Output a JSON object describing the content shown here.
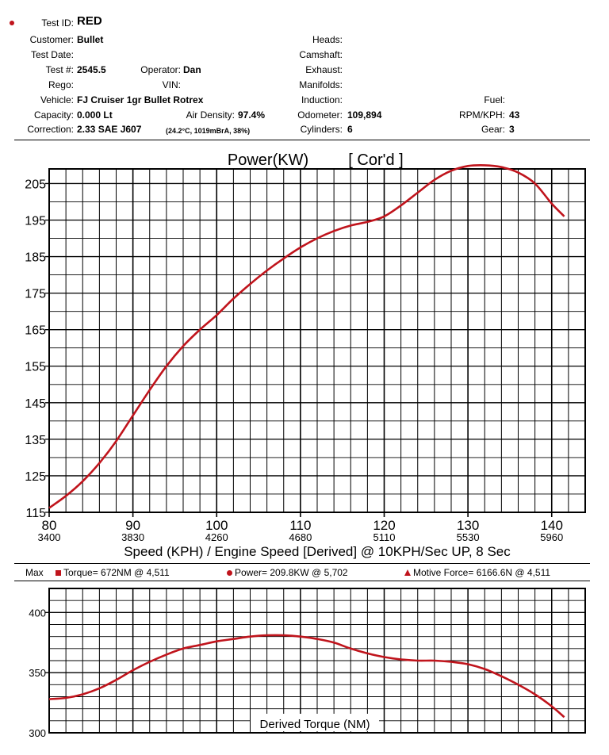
{
  "header": {
    "test_id_label": "Test ID:",
    "test_id": "RED",
    "customer_label": "Customer:",
    "customer": "Bullet",
    "test_date_label": "Test Date:",
    "test_num_label": "Test #:",
    "test_num": "2545.5",
    "operator_label": "Operator:",
    "operator": "Dan",
    "rego_label": "Rego:",
    "vin_label": "VIN:",
    "vehicle_label": "Vehicle:",
    "vehicle": "FJ Cruiser 1gr Bullet Rotrex",
    "capacity_label": "Capacity:",
    "capacity": "0.000 Lt",
    "air_density_label": "Air Density:",
    "air_density": "97.4%",
    "correction_label": "Correction:",
    "correction": "2.33 SAE J607",
    "conditions": "(24.2°C, 1019mBrA, 38%)",
    "heads_label": "Heads:",
    "camshaft_label": "Camshaft:",
    "exhaust_label": "Exhaust:",
    "manifolds_label": "Manifolds:",
    "induction_label": "Induction:",
    "odometer_label": "Odometer:",
    "odometer": "109,894",
    "cylinders_label": "Cylinders:",
    "cylinders": "6",
    "fuel_label": "Fuel:",
    "rpm_kph_label": "RPM/KPH:",
    "rpm_kph": "43",
    "gear_label": "Gear:",
    "gear": "3"
  },
  "max": {
    "label": "Max",
    "torque": "Torque= 672NM @ 4,511",
    "power": "Power= 209.8KW @ 5,702",
    "motive": "Motive Force= 6166.6N @ 4,511"
  },
  "colors": {
    "curve": "#c0141c",
    "grid": "#000000"
  },
  "chart_data": [
    {
      "type": "line",
      "title": "Power(KW)",
      "subtitle": "[ Cor'd ]",
      "xlabel": "Speed (KPH) / Engine Speed [Derived] @ 10KPH/Sec UP, 8 Sec",
      "xlim": [
        80,
        144
      ],
      "ylim": [
        115,
        209
      ],
      "x_ticks": [
        80,
        90,
        100,
        110,
        120,
        130,
        140
      ],
      "x_ticks_rpm": [
        "3400",
        "3830",
        "4260",
        "4680",
        "5110",
        "5530",
        "5960"
      ],
      "y_ticks": [
        115,
        125,
        135,
        145,
        155,
        165,
        175,
        185,
        195,
        205
      ],
      "grid": true,
      "series": [
        {
          "x": [
            80,
            82,
            84,
            86,
            88,
            90,
            92,
            94,
            96,
            98,
            100,
            102,
            104,
            106,
            108,
            110,
            112,
            114,
            116,
            118,
            120,
            122,
            124,
            126,
            128,
            130,
            132,
            134,
            136,
            138,
            140,
            141.5
          ],
          "y": [
            116.2,
            119.5,
            123.5,
            128.5,
            134.5,
            141.5,
            148.5,
            155,
            160.5,
            165,
            169,
            173.5,
            177.5,
            181.2,
            184.5,
            187.5,
            190,
            192,
            193.5,
            194.5,
            196,
            199,
            202.5,
            206,
            208.5,
            209.8,
            210,
            209.5,
            208,
            205,
            199.5,
            196
          ]
        }
      ]
    },
    {
      "type": "line",
      "title": "Derived Torque (NM)",
      "xlim": [
        80,
        144
      ],
      "ylim": [
        300,
        420
      ],
      "y_ticks": [
        300,
        350,
        400
      ],
      "grid": true,
      "series": [
        {
          "x": [
            80,
            82,
            84,
            86,
            88,
            90,
            92,
            94,
            96,
            98,
            100,
            102,
            104,
            106,
            108,
            110,
            112,
            114,
            116,
            118,
            120,
            122,
            124,
            126,
            128,
            130,
            132,
            134,
            136,
            138,
            140,
            141.5
          ],
          "y": [
            328,
            329,
            332,
            337,
            344,
            352,
            359,
            365,
            370,
            373,
            376,
            378,
            380,
            381,
            381,
            380,
            378,
            375,
            370,
            366,
            363,
            361,
            360,
            360,
            359,
            357,
            353,
            347,
            340,
            332,
            322,
            313
          ]
        }
      ]
    }
  ]
}
